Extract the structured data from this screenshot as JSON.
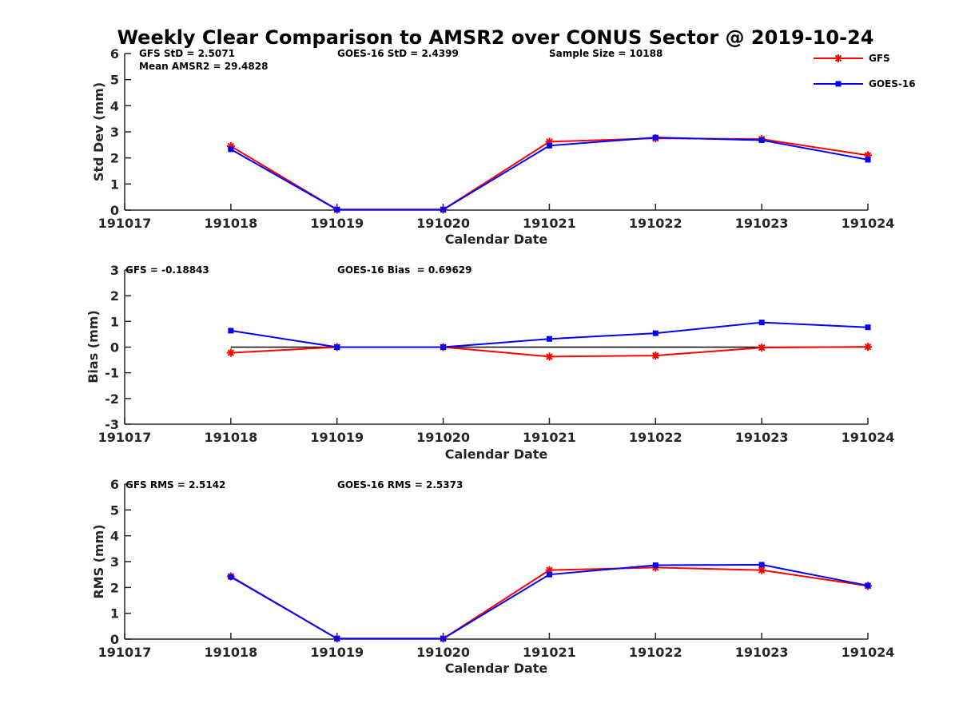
{
  "chart_data": {
    "title": "Weekly Clear Comparison to AMSR2 over CONUS Sector @ 2019-10-24",
    "colors": {
      "GFS": "#ff0000",
      "GOES-16": "#0000ff",
      "axis": "#262626",
      "zero_line": "#000000"
    },
    "legend": {
      "placement": "top-right",
      "entries": [
        {
          "name": "GFS",
          "color": "#ff0000",
          "marker": "asterisk"
        },
        {
          "name": "GOES-16",
          "color": "#0000ff",
          "marker": "square"
        }
      ]
    },
    "panels": [
      {
        "id": "std",
        "type": "line",
        "ylabel": "Std Dev (mm)",
        "xlabel": "Calendar Date",
        "x": [
          "191017",
          "191018",
          "191019",
          "191020",
          "191021",
          "191022",
          "191023",
          "191024"
        ],
        "ylim": [
          0,
          6
        ],
        "yticks": [
          0,
          1,
          2,
          3,
          4,
          5,
          6
        ],
        "zero_line": false,
        "annotations": [
          "GFS StD = 2.5071",
          "Mean AMSR2 = 29.4828",
          "GOES-16 StD = 2.4399",
          "Sample Size = 10188"
        ],
        "series": [
          {
            "name": "GFS",
            "color": "#ff0000",
            "marker": "asterisk",
            "x": [
              "191018",
              "191019",
              "191020",
              "191021",
              "191022",
              "191023",
              "191024"
            ],
            "values": [
              2.45,
              0.02,
              0.02,
              2.62,
              2.75,
              2.72,
              2.1
            ]
          },
          {
            "name": "GOES-16",
            "color": "#0000ff",
            "marker": "square",
            "x": [
              "191018",
              "191019",
              "191020",
              "191021",
              "191022",
              "191023",
              "191024"
            ],
            "values": [
              2.33,
              0.02,
              0.02,
              2.47,
              2.78,
              2.68,
              1.93
            ]
          }
        ]
      },
      {
        "id": "bias",
        "type": "line",
        "ylabel": "Bias (mm)",
        "xlabel": "Calendar Date",
        "x": [
          "191017",
          "191018",
          "191019",
          "191020",
          "191021",
          "191022",
          "191023",
          "191024"
        ],
        "ylim": [
          -3,
          3
        ],
        "yticks": [
          -3,
          -2,
          -1,
          0,
          1,
          2,
          3
        ],
        "zero_line": true,
        "annotations": [
          "GFS = -0.18843",
          "GOES-16 Bias  = 0.69629"
        ],
        "series": [
          {
            "name": "GFS",
            "color": "#ff0000",
            "marker": "asterisk",
            "x": [
              "191018",
              "191019",
              "191020",
              "191021",
              "191022",
              "191023",
              "191024"
            ],
            "values": [
              -0.22,
              0.0,
              0.0,
              -0.37,
              -0.33,
              -0.02,
              0.01
            ]
          },
          {
            "name": "GOES-16",
            "color": "#0000ff",
            "marker": "square",
            "x": [
              "191018",
              "191019",
              "191020",
              "191021",
              "191022",
              "191023",
              "191024"
            ],
            "values": [
              0.64,
              0.0,
              0.0,
              0.32,
              0.54,
              0.96,
              0.77
            ]
          }
        ]
      },
      {
        "id": "rms",
        "type": "line",
        "ylabel": "RMS (mm)",
        "xlabel": "Calendar Date",
        "x": [
          "191017",
          "191018",
          "191019",
          "191020",
          "191021",
          "191022",
          "191023",
          "191024"
        ],
        "ylim": [
          0,
          6
        ],
        "yticks": [
          0,
          1,
          2,
          3,
          4,
          5,
          6
        ],
        "zero_line": false,
        "annotations": [
          "GFS RMS = 2.5142",
          "GOES-16 RMS = 2.5373"
        ],
        "series": [
          {
            "name": "GFS",
            "color": "#ff0000",
            "marker": "asterisk",
            "x": [
              "191018",
              "191019",
              "191020",
              "191021",
              "191022",
              "191023",
              "191024"
            ],
            "values": [
              2.43,
              0.02,
              0.02,
              2.67,
              2.77,
              2.67,
              2.06
            ]
          },
          {
            "name": "GOES-16",
            "color": "#0000ff",
            "marker": "square",
            "x": [
              "191018",
              "191019",
              "191020",
              "191021",
              "191022",
              "191023",
              "191024"
            ],
            "values": [
              2.41,
              0.02,
              0.02,
              2.5,
              2.86,
              2.88,
              2.07
            ]
          }
        ]
      }
    ]
  }
}
